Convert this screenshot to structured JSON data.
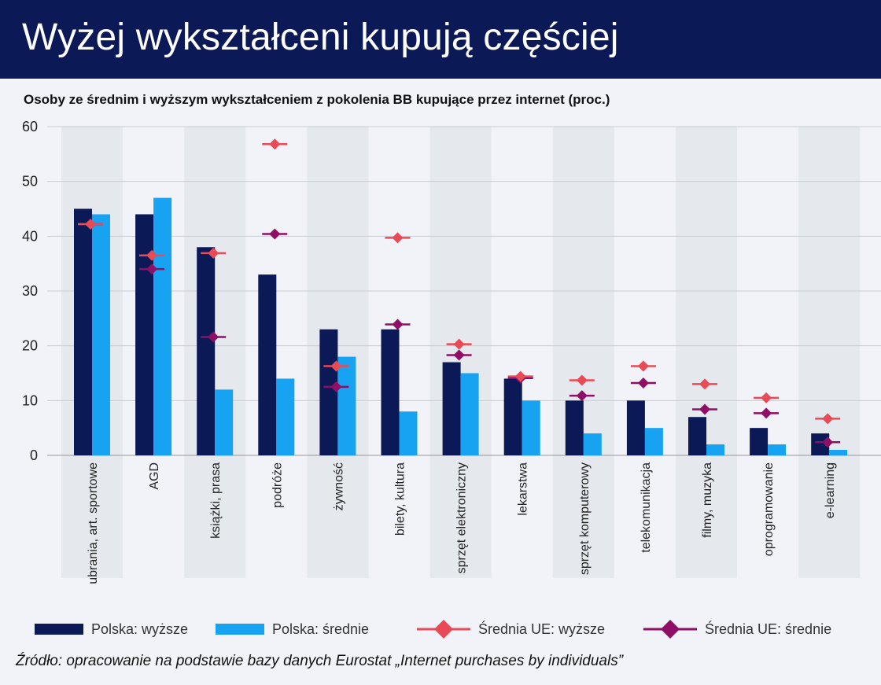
{
  "header": {
    "title": "Wyżej wykształceni kupują częściej"
  },
  "subtitle": "Osoby ze średnim i wyższym wykształceniem z pokolenia BB kupujące przez internet (proc.)",
  "source": "Źródło: opracowanie na podstawie bazy danych Eurostat „Internet purchases by individuals”",
  "colors": {
    "polska_wyzsze": "#0c1957",
    "polska_srednie": "#17a3f2",
    "ue_wyzsze": "#e84b55",
    "ue_srednie": "#8e0f65",
    "band": "#e5e8ed",
    "grid": "#c9ccd3"
  },
  "chart_data": {
    "type": "bar",
    "title": "Wyżej wykształceni kupują częściej",
    "ylabel": "",
    "xlabel": "",
    "ylim": [
      0,
      60
    ],
    "yticks": [
      0,
      10,
      20,
      30,
      40,
      50,
      60
    ],
    "grid": true,
    "legend_position": "bottom",
    "categories": [
      "ubrania, art. sportowe",
      "AGD",
      "książki, prasa",
      "podróże",
      "żywność",
      "bilety, kultura",
      "sprzęt elektroniczny",
      "lekarstwa",
      "sprzęt komputerowy",
      "telekomunikacja",
      "filmy, muzyka",
      "oprogramowanie",
      "e-learning"
    ],
    "series": [
      {
        "name": "Polska: wyższe",
        "kind": "bar",
        "color": "#0c1957",
        "values": [
          45,
          44,
          38,
          33,
          23,
          23,
          17,
          14,
          10,
          10,
          7,
          5,
          4
        ]
      },
      {
        "name": "Polska: średnie",
        "kind": "bar",
        "color": "#17a3f2",
        "values": [
          44,
          47,
          12,
          14,
          18,
          8,
          15,
          10,
          4,
          5,
          2,
          2,
          1
        ]
      },
      {
        "name": "Średnia UE: wyższe",
        "kind": "marker",
        "color": "#e84b55",
        "values": [
          42.2,
          36.5,
          36.9,
          56.8,
          16.3,
          39.7,
          20.3,
          14.4,
          13.7,
          16.3,
          13.0,
          10.5,
          6.7
        ]
      },
      {
        "name": "Średnia UE: średnie",
        "kind": "marker",
        "color": "#8e0f65",
        "values": [
          42.2,
          34.0,
          21.6,
          40.4,
          12.5,
          23.9,
          18.3,
          14.1,
          10.9,
          13.2,
          8.4,
          7.7,
          2.4
        ]
      }
    ]
  }
}
